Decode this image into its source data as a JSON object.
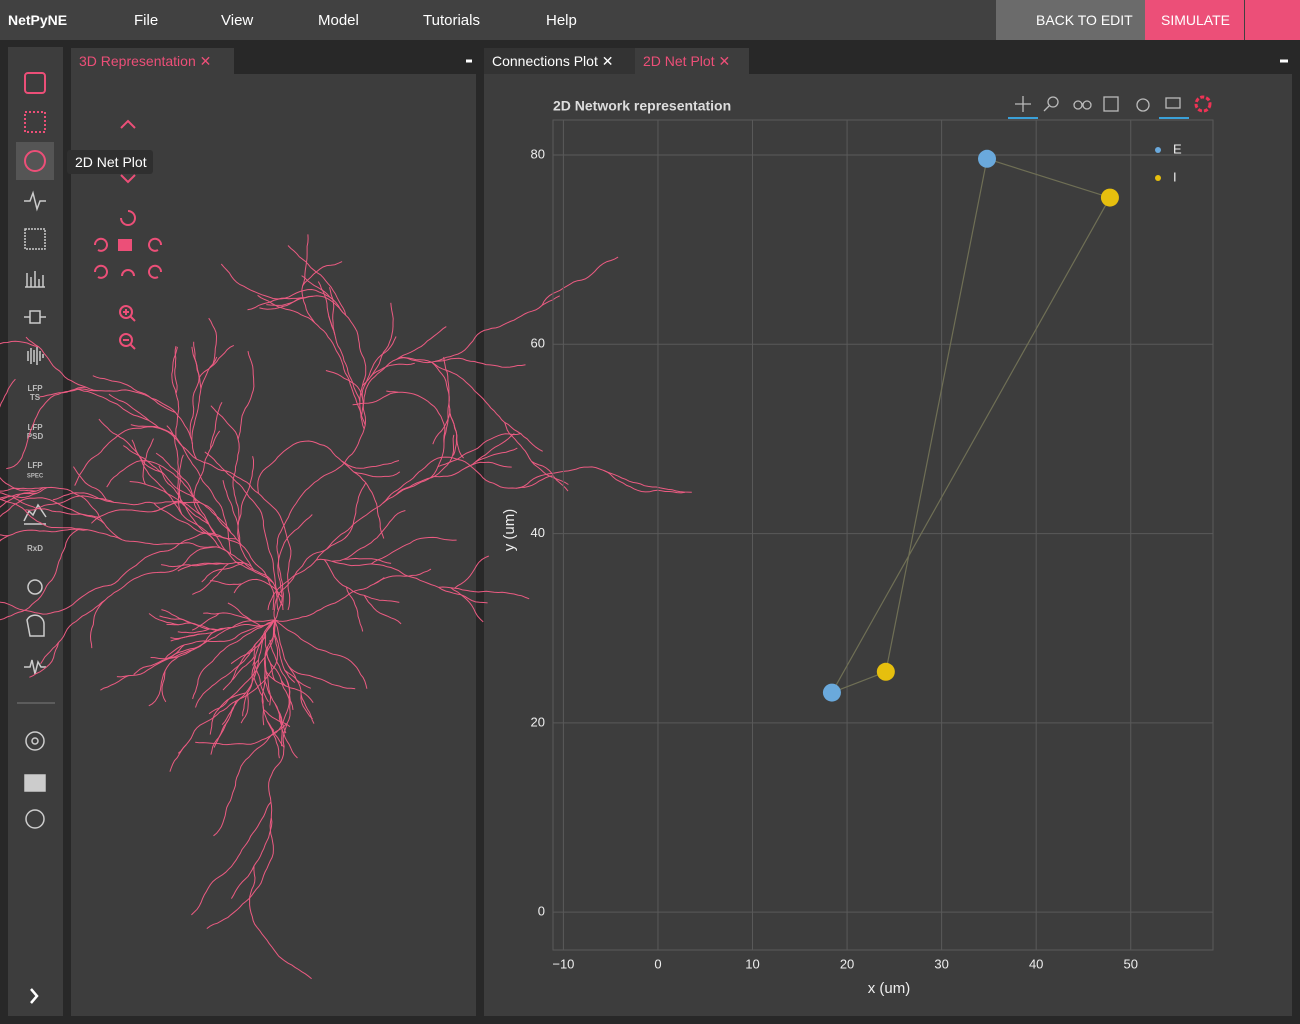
{
  "menu": {
    "brand": "NetPyNE",
    "items": [
      "File",
      "View",
      "Model",
      "Tutorials",
      "Help"
    ],
    "back_to_edit": "BACK TO EDIT",
    "simulate": "SIMULATE"
  },
  "sidebar": {
    "lfp_ts": [
      "LFP",
      "TS"
    ],
    "lfp_psd": [
      "LFP",
      "PSD"
    ],
    "lfp_spec": [
      "LFP",
      "SPEC"
    ],
    "rxd": "RxD",
    "tooltip": "2D Net Plot"
  },
  "tabs": {
    "left": [
      "3D Representation"
    ],
    "right": [
      "Connections Plot",
      "2D Net Plot"
    ]
  },
  "chart_data": {
    "type": "scatter",
    "title": "2D Network representation",
    "x_label": "x (um)",
    "y_label": "y (um)",
    "xlim": [
      -11.1,
      58.7
    ],
    "ylim": [
      -4,
      83.7
    ],
    "xticks": [
      {
        "value": -10,
        "label": "−10"
      },
      0,
      10,
      20,
      30,
      40,
      50
    ],
    "yticks": [
      0,
      20,
      40,
      60,
      80
    ],
    "grid": true,
    "legend": "upper right",
    "series": [
      {
        "name": "E",
        "color": "#6aa9dc",
        "x": [
          18.4,
          34.8
        ],
        "values": [
          23.2,
          79.6
        ]
      },
      {
        "name": "I",
        "color": "#e6bf0e",
        "x": [
          24.1,
          47.8
        ],
        "values": [
          25.4,
          75.5
        ]
      }
    ]
  }
}
